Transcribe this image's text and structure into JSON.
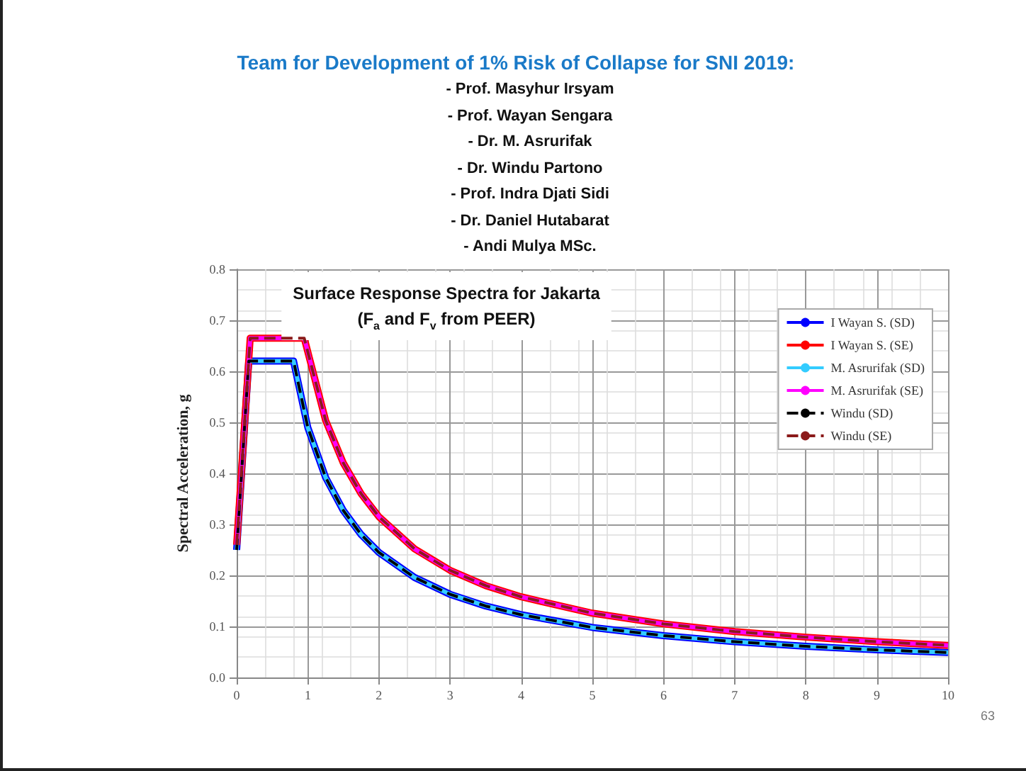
{
  "chart_data": {
    "type": "line",
    "title": "Team for Development of 1% Risk of Collapse for SNI 2019:",
    "subtitle": "Surface Response Spectra for Jakarta\n(F$_{a}$ and F$_{v}$ from PEER)",
    "ylabel": "Spectral Acceleration, g",
    "annotations": [
      "- Prof. Masyhur Irsyam",
      "- Prof. Wayan Sengara",
      "- Dr. M. Asrurifak",
      "- Dr. Windu Partono",
      "- Prof. Indra Djati Sidi",
      "- Dr. Daniel Hutabarat",
      "- Andi Mulya MSc.",
      "63"
    ],
    "xlim": [
      0,
      10
    ],
    "xticks": [
      0,
      1,
      2,
      3,
      4,
      5,
      6,
      7,
      8,
      9,
      10
    ],
    "ylim": [
      0,
      0.8
    ],
    "yticks": [
      {
        "value": 0,
        "label": "0.0"
      },
      0.1,
      0.2,
      0.3,
      0.4,
      0.5,
      0.6,
      0.7,
      0.8
    ],
    "grid": true,
    "legend": "top right",
    "marker": "none",
    "series": [
      {
        "name": "I Wayan S. (SD)",
        "color": "#0000ff",
        "line_style": "solid",
        "x": [
          0,
          0.17,
          0.8,
          1,
          1.25,
          1.5,
          1.75,
          2,
          2.5,
          3,
          3.5,
          4,
          5,
          6,
          7,
          8,
          9,
          10
        ],
        "values": [
          0.25,
          0.62,
          0.62,
          0.49,
          0.392,
          0.327,
          0.28,
          0.245,
          0.196,
          0.163,
          0.14,
          0.123,
          0.098,
          0.082,
          0.07,
          0.061,
          0.054,
          0.049
        ]
      },
      {
        "name": "I Wayan S. (SE)",
        "color": "#ff0000",
        "line_style": "solid",
        "x": [
          0,
          0.19,
          0.95,
          1.25,
          1.5,
          1.75,
          2,
          2.5,
          3,
          3.5,
          4,
          5,
          6,
          7,
          8,
          9,
          10
        ],
        "values": [
          0.26,
          0.665,
          0.665,
          0.504,
          0.42,
          0.36,
          0.315,
          0.252,
          0.21,
          0.18,
          0.158,
          0.126,
          0.105,
          0.09,
          0.079,
          0.07,
          0.063
        ]
      },
      {
        "name": "M. Asrurifak (SD)",
        "color": "#33ccff",
        "line_style": "solid",
        "x": [
          0,
          0.17,
          0.8,
          1,
          1.25,
          1.5,
          1.75,
          2,
          2.5,
          3,
          3.5,
          4,
          5,
          6,
          7,
          8,
          9,
          10
        ],
        "values": [
          0.25,
          0.62,
          0.62,
          0.49,
          0.392,
          0.327,
          0.28,
          0.245,
          0.196,
          0.163,
          0.14,
          0.123,
          0.098,
          0.082,
          0.07,
          0.061,
          0.054,
          0.049
        ]
      },
      {
        "name": "M. Asrurifak (SE)",
        "color": "#ff00ff",
        "line_style": "solid",
        "x": [
          0,
          0.19,
          0.95,
          1.25,
          1.5,
          1.75,
          2,
          2.5,
          3,
          3.5,
          4,
          5,
          6,
          7,
          8,
          9,
          10
        ],
        "values": [
          0.26,
          0.665,
          0.665,
          0.504,
          0.42,
          0.36,
          0.315,
          0.252,
          0.21,
          0.18,
          0.158,
          0.126,
          0.105,
          0.09,
          0.079,
          0.07,
          0.063
        ]
      },
      {
        "name": "Windu (SD)",
        "color": "#000000",
        "line_style": "dashed",
        "x": [
          0,
          0.17,
          0.8,
          1,
          1.25,
          1.5,
          1.75,
          2,
          2.5,
          3,
          3.5,
          4,
          5,
          6,
          7,
          8,
          9,
          10
        ],
        "values": [
          0.25,
          0.62,
          0.62,
          0.49,
          0.392,
          0.327,
          0.28,
          0.245,
          0.196,
          0.163,
          0.14,
          0.123,
          0.098,
          0.082,
          0.07,
          0.061,
          0.054,
          0.049
        ]
      },
      {
        "name": "Windu (SE)",
        "color": "#8b1a1a",
        "line_style": "dashed",
        "x": [
          0,
          0.19,
          0.95,
          1.25,
          1.5,
          1.75,
          2,
          2.5,
          3,
          3.5,
          4,
          5,
          6,
          7,
          8,
          9,
          10
        ],
        "values": [
          0.26,
          0.665,
          0.665,
          0.504,
          0.42,
          0.36,
          0.315,
          0.252,
          0.21,
          0.18,
          0.158,
          0.126,
          0.105,
          0.09,
          0.079,
          0.07,
          0.063
        ]
      }
    ]
  }
}
